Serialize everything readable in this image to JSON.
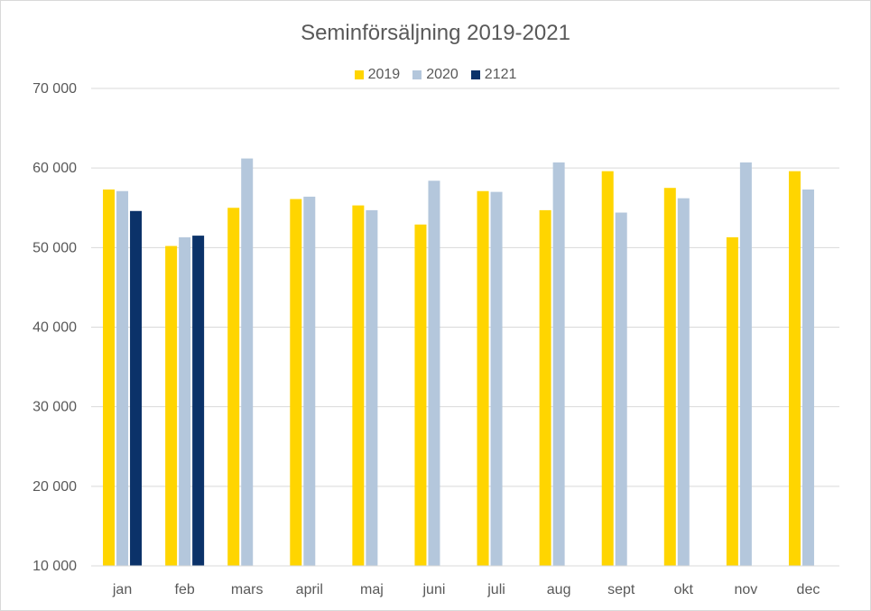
{
  "chart_data": {
    "type": "bar",
    "title": "Seminförsäljning 2019-2021",
    "categories": [
      "jan",
      "feb",
      "mars",
      "april",
      "maj",
      "juni",
      "juli",
      "aug",
      "sept",
      "okt",
      "nov",
      "dec"
    ],
    "series": [
      {
        "name": "2019",
        "color": "#ffd500",
        "values": [
          57300,
          50200,
          55000,
          56100,
          55300,
          52900,
          57100,
          54700,
          59600,
          57500,
          51300,
          59600
        ]
      },
      {
        "name": "2020",
        "color": "#b4c7dc",
        "values": [
          57100,
          51300,
          61200,
          56400,
          54700,
          58400,
          57000,
          60700,
          54400,
          56200,
          60700,
          57300
        ]
      },
      {
        "name": "2121",
        "color": "#0b3269",
        "values": [
          54600,
          51500,
          null,
          null,
          null,
          null,
          null,
          null,
          null,
          null,
          null,
          null
        ]
      }
    ],
    "yticks": [
      "10 000",
      "20 000",
      "30 000",
      "40 000",
      "50 000",
      "60 000",
      "70 000"
    ],
    "ytick_values": [
      10000,
      20000,
      30000,
      40000,
      50000,
      60000,
      70000
    ],
    "ylim": [
      10000,
      70000
    ],
    "grid": true,
    "legend_position": "top-center",
    "xlabel": "",
    "ylabel": ""
  }
}
